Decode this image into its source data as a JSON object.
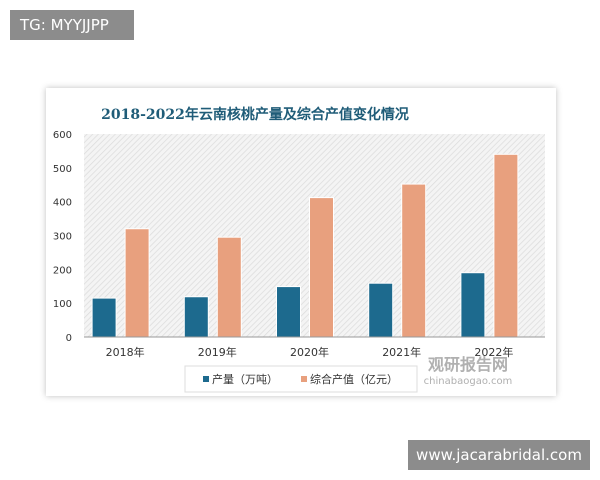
{
  "tag": "TG: MYYJJPP",
  "site": "www.jacarabridal.com",
  "watermark": {
    "cn": "观研报告网",
    "en": "chinabaogao.com"
  },
  "colors": {
    "production": "#1d6a8e",
    "value": "#e8a07e",
    "title": "#1f5c78"
  },
  "chart_data": {
    "type": "bar",
    "title": "2018-2022年云南核桃产量及综合产值变化情况",
    "categories": [
      "2018年",
      "2019年",
      "2020年",
      "2021年",
      "2022年"
    ],
    "series": [
      {
        "name": "产量（万吨）",
        "values": [
          115,
          119,
          149,
          159,
          190
        ]
      },
      {
        "name": "综合产值（亿元）",
        "values": [
          320,
          295,
          412,
          452,
          540
        ]
      }
    ],
    "yticks": [
      "0",
      "100",
      "200",
      "300",
      "400",
      "500",
      "600"
    ],
    "ylim": [
      0,
      600
    ],
    "legend": "bottom",
    "grid": false
  }
}
